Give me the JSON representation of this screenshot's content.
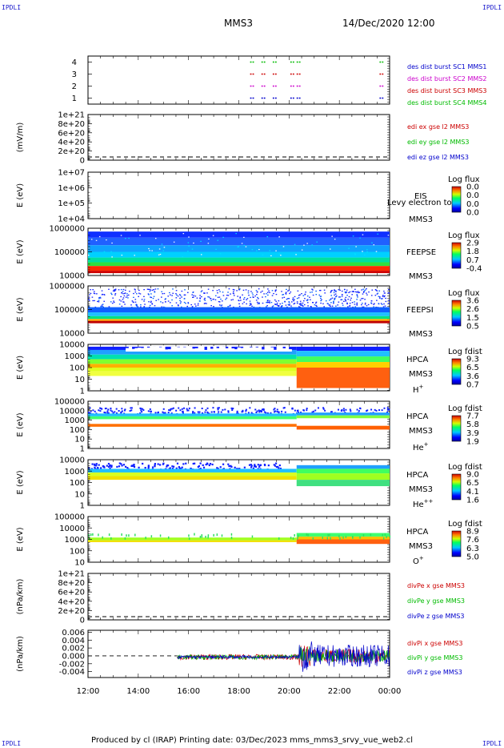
{
  "header": {
    "corner_label": "IPDLI",
    "spacecraft": "MMS3",
    "datetime": "14/Dec/2020 12:00"
  },
  "footer": {
    "text": "Produced by cl (IRAP)   Printing date: 03/Dec/2023   mms_mms3_srvy_vue_web2.cl"
  },
  "colors": {
    "mms1": "#0000cc",
    "mms2": "#cc00cc",
    "mms3": "#cc0000",
    "mms4": "#00bb00"
  },
  "chart_data": [
    {
      "id": "burst",
      "type": "scatter",
      "y_ticks": [
        "4",
        "3",
        "2",
        "1"
      ],
      "ylim": [
        0.5,
        4.5
      ],
      "legend": [
        "des dist burst SC1 MMS1",
        "des dist burst SC2 MMS2",
        "des dist burst SC3 MMS3",
        "des dist burst SC4 MMS4"
      ],
      "burst_intervals_hours": [
        18.45,
        18.9,
        19.35,
        20.05,
        20.3,
        23.6
      ]
    },
    {
      "id": "edi",
      "type": "line",
      "ylabel": "(mV/m)",
      "y_ticks": [
        "1e+21",
        "8e+20",
        "6e+20",
        "4e+20",
        "2e+20",
        "0"
      ],
      "legend": [
        "edi ex gse l2 MMS3",
        "edi ey gse l2 MMS3",
        "edi ez gse l2 MMS3"
      ],
      "dashed_zero": true
    },
    {
      "id": "eis",
      "type": "heatmap",
      "ylabel": "E (eV)",
      "y_ticks": [
        "1e+07",
        "1e+06",
        "1e+05",
        "1e+04"
      ],
      "labels": [
        "EIS",
        "MMS3"
      ],
      "overlay_text": "Levy electron to",
      "cbar_title": "Log flux",
      "cbar_ticks": [
        "0.0",
        "0.0",
        "0.0",
        "0.0"
      ]
    },
    {
      "id": "feepse",
      "type": "heatmap",
      "ylabel": "E (eV)",
      "y_ticks": [
        "1000000",
        "100000",
        "10000"
      ],
      "labels": [
        "FEEPSE",
        "MMS3"
      ],
      "cbar_title": "Log flux",
      "cbar_ticks": [
        "2.9",
        "1.8",
        "0.7",
        "-0.4"
      ]
    },
    {
      "id": "feepsi",
      "type": "heatmap",
      "ylabel": "E (eV)",
      "y_ticks": [
        "1000000",
        "100000",
        "10000"
      ],
      "labels": [
        "FEEPSI",
        "MMS3"
      ],
      "cbar_title": "Log flux",
      "cbar_ticks": [
        "3.6",
        "2.6",
        "1.5",
        "0.5"
      ]
    },
    {
      "id": "hpca_h",
      "type": "heatmap",
      "ylabel": "E (eV)",
      "y_ticks": [
        "10000",
        "1000",
        "100",
        "10",
        "1"
      ],
      "labels": [
        "HPCA",
        "MMS3"
      ],
      "species": "H",
      "charge": "+",
      "cbar_title": "Log fdist",
      "cbar_ticks": [
        "9.3",
        "6.5",
        "3.6",
        "0.7"
      ]
    },
    {
      "id": "hpca_he",
      "type": "heatmap",
      "ylabel": "E (eV)",
      "y_ticks": [
        "100000",
        "10000",
        "1000",
        "100",
        "10",
        "1"
      ],
      "labels": [
        "HPCA",
        "MMS3"
      ],
      "species": "He",
      "charge": "+",
      "cbar_title": "Log fdist",
      "cbar_ticks": [
        "7.7",
        "5.8",
        "3.9",
        "1.9"
      ]
    },
    {
      "id": "hpca_hepp",
      "type": "heatmap",
      "ylabel": "E (eV)",
      "y_ticks": [
        "10000",
        "1000",
        "100",
        "10",
        "1"
      ],
      "labels": [
        "HPCA",
        "MMS3"
      ],
      "species": "He",
      "charge": "++",
      "cbar_title": "Log fdist",
      "cbar_ticks": [
        "9.0",
        "6.5",
        "4.1",
        "1.6"
      ]
    },
    {
      "id": "hpca_o",
      "type": "heatmap",
      "ylabel": "E (eV)",
      "y_ticks": [
        "100000",
        "10000",
        "1000",
        "100",
        "10"
      ],
      "labels": [
        "HPCA",
        "MMS3"
      ],
      "species": "O",
      "charge": "+",
      "cbar_title": "Log fdist",
      "cbar_ticks": [
        "8.9",
        "7.6",
        "6.3",
        "5.0"
      ]
    },
    {
      "id": "divpe",
      "type": "line",
      "ylabel": "(nPa/km)",
      "y_ticks": [
        "1e+21",
        "8e+20",
        "6e+20",
        "4e+20",
        "2e+20",
        "0"
      ],
      "legend": [
        "divPe x gse MMS3",
        "divPe y gse MMS3",
        "divPe z gse MMS3"
      ],
      "dashed_zero": true
    },
    {
      "id": "divpi",
      "type": "line",
      "ylabel": "(nPa/km)",
      "y_ticks": [
        "0.006",
        "0.004",
        "0.002",
        "0.000",
        "-0.002",
        "-0.004"
      ],
      "ylim": [
        -0.0055,
        0.0065
      ],
      "legend": [
        "divPi x gse MMS3",
        "divPi y gse MMS3",
        "divPi z gse MMS3"
      ],
      "data_start_hour": 15.55,
      "event_hour": 20.4,
      "dashed_zero": true
    }
  ],
  "time_axis": {
    "ticks": [
      "12:00",
      "14:00",
      "16:00",
      "18:00",
      "20:00",
      "22:00",
      "00:00"
    ],
    "range_hours": [
      12,
      24
    ]
  }
}
